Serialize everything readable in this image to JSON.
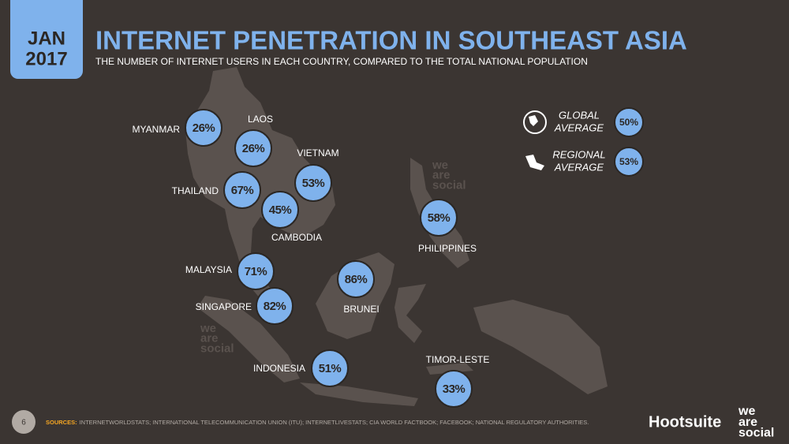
{
  "date": {
    "month": "JAN",
    "year": "2017"
  },
  "title": "INTERNET PENETRATION IN SOUTHEAST ASIA",
  "subtitle": "THE NUMBER OF INTERNET USERS IN EACH COUNTRY, COMPARED TO THE TOTAL NATIONAL POPULATION",
  "countries": [
    {
      "name": "MYANMAR",
      "value": "26%"
    },
    {
      "name": "LAOS",
      "value": "26%"
    },
    {
      "name": "VIETNAM",
      "value": "53%"
    },
    {
      "name": "THAILAND",
      "value": "67%"
    },
    {
      "name": "CAMBODIA",
      "value": "45%"
    },
    {
      "name": "PHILIPPINES",
      "value": "58%"
    },
    {
      "name": "MALAYSIA",
      "value": "71%"
    },
    {
      "name": "SINGAPORE",
      "value": "82%"
    },
    {
      "name": "BRUNEI",
      "value": "86%"
    },
    {
      "name": "INDONESIA",
      "value": "51%"
    },
    {
      "name": "TIMOR-LESTE",
      "value": "33%"
    }
  ],
  "averages": [
    {
      "label_lines": [
        "GLOBAL",
        "AVERAGE"
      ],
      "value": "50%"
    },
    {
      "label_lines": [
        "REGIONAL",
        "AVERAGE"
      ],
      "value": "53%"
    }
  ],
  "footer": {
    "page": "6",
    "sources_label": "SOURCES:",
    "sources": "INTERNETWORLDSTATS; INTERNATIONAL TELECOMMUNICATION UNION (ITU); INTERNETLIVESTATS; CIA WORLD FACTBOOK; FACEBOOK; NATIONAL REGULATORY AUTHORITIES."
  },
  "brands": {
    "hootsuite": "Hootsuite",
    "we_are_social": [
      "we",
      "are",
      "social"
    ]
  }
}
